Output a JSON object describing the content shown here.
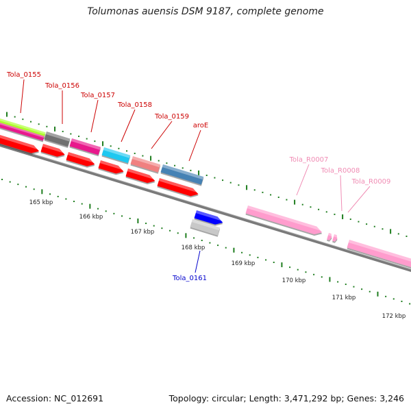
{
  "header": {
    "title": "Tolumonas auensis DSM 9187, complete genome"
  },
  "footer": {
    "accession": "Accession: NC_012691",
    "topology": "Topology: circular; Length: 3,471,292 bp; Genes: 3,246"
  },
  "colors": {
    "backbone": "#7a7a7a",
    "tick": "#1e7d1e",
    "gene_label": "#cc0000",
    "rna_label": "#f08cb4",
    "lower_label": "#0000cc"
  },
  "scale": {
    "labels": [
      "165 kbp",
      "166 kbp",
      "167 kbp",
      "168 kbp",
      "169 kbp",
      "170 kbp",
      "171 kbp",
      "172 kbp"
    ]
  },
  "features": {
    "upper": [
      {
        "name": "Tola_0155",
        "color": "#e8198c"
      },
      {
        "name": "Tola_0156",
        "color": "#707070"
      },
      {
        "name": "Tola_0157",
        "color": "#e8198c"
      },
      {
        "name": "Tola_0158",
        "color": "#1ec8f0"
      },
      {
        "name": "Tola_0159",
        "color": "#f08080"
      },
      {
        "name": "aroE",
        "color": "#4682b4"
      }
    ],
    "rna": [
      {
        "name": "Tola_R0007",
        "color": "#ff9ccd"
      },
      {
        "name": "Tola_R0008",
        "color": "#ff9ccd"
      },
      {
        "name": "Tola_R0009",
        "color": "#ff9ccd"
      }
    ],
    "lower": [
      {
        "name": "Tola_0161",
        "color": "#c8c8c8"
      }
    ],
    "strand_colors": {
      "red": "#ff0000",
      "blue": "#0000ff",
      "green": "#adff2f"
    }
  }
}
